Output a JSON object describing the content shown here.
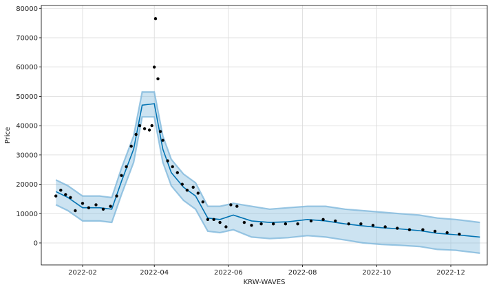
{
  "chart_data": {
    "type": "line",
    "title": "",
    "xlabel": "KRW-WAVES",
    "ylabel": "Price",
    "xlim": [
      "2021-12-29",
      "2022-12-31"
    ],
    "ylim": [
      -7500,
      81000
    ],
    "grid": true,
    "xticks": [
      {
        "label": "2022-02",
        "date": "2022-02-01"
      },
      {
        "label": "2022-04",
        "date": "2022-04-01"
      },
      {
        "label": "2022-06",
        "date": "2022-06-01"
      },
      {
        "label": "2022-08",
        "date": "2022-08-01"
      },
      {
        "label": "2022-10",
        "date": "2022-10-01"
      },
      {
        "label": "2022-12",
        "date": "2022-12-01"
      }
    ],
    "yticks": [
      0,
      10000,
      20000,
      30000,
      40000,
      50000,
      60000,
      70000,
      80000
    ],
    "colors": {
      "forecast": "#0072B2",
      "interval": "#7fb8dc",
      "observed": "#000000"
    },
    "series": [
      {
        "kind": "forecast",
        "x": [
          "2022-01-10",
          "2022-01-20",
          "2022-02-01",
          "2022-02-15",
          "2022-02-25",
          "2022-03-05",
          "2022-03-15",
          "2022-03-22",
          "2022-04-01",
          "2022-04-08",
          "2022-04-15",
          "2022-04-25",
          "2022-05-05",
          "2022-05-15",
          "2022-05-25",
          "2022-06-05",
          "2022-06-20",
          "2022-07-05",
          "2022-07-20",
          "2022-08-05",
          "2022-08-20",
          "2022-09-05",
          "2022-09-20",
          "2022-10-05",
          "2022-10-20",
          "2022-11-05",
          "2022-11-20",
          "2022-12-05",
          "2022-12-15",
          "2022-12-25"
        ],
        "yhat": [
          17500,
          15500,
          12000,
          12000,
          11500,
          21000,
          32000,
          47000,
          47500,
          32000,
          24000,
          19000,
          16000,
          8500,
          8000,
          9500,
          7500,
          7000,
          7200,
          8000,
          7500,
          6500,
          5800,
          5200,
          4800,
          4200,
          3300,
          2800,
          2400,
          2000
        ],
        "yhat_lower": [
          13000,
          11000,
          7500,
          7500,
          7000,
          16500,
          27500,
          43000,
          43000,
          27500,
          19500,
          14500,
          11500,
          4000,
          3500,
          4500,
          2000,
          1500,
          1800,
          2500,
          2000,
          1000,
          0,
          -500,
          -800,
          -1200,
          -2200,
          -2500,
          -3000,
          -3500
        ],
        "yhat_upper": [
          21500,
          19500,
          16000,
          16000,
          15500,
          25500,
          36500,
          51500,
          51500,
          36500,
          28500,
          23500,
          20500,
          12500,
          12500,
          13500,
          12500,
          11500,
          12000,
          12500,
          12500,
          11500,
          11000,
          10500,
          10000,
          9500,
          8500,
          8000,
          7500,
          7000
        ]
      },
      {
        "kind": "observed",
        "x": [
          "2022-01-10",
          "2022-01-14",
          "2022-01-18",
          "2022-01-22",
          "2022-01-26",
          "2022-02-01",
          "2022-02-06",
          "2022-02-12",
          "2022-02-18",
          "2022-02-24",
          "2022-03-01",
          "2022-03-05",
          "2022-03-09",
          "2022-03-13",
          "2022-03-17",
          "2022-03-20",
          "2022-03-24",
          "2022-03-28",
          "2022-03-30",
          "2022-04-01",
          "2022-04-02",
          "2022-04-04",
          "2022-04-06",
          "2022-04-08",
          "2022-04-12",
          "2022-04-16",
          "2022-04-20",
          "2022-04-24",
          "2022-04-28",
          "2022-05-03",
          "2022-05-07",
          "2022-05-11",
          "2022-05-15",
          "2022-05-20",
          "2022-05-25",
          "2022-05-30",
          "2022-06-03",
          "2022-06-08",
          "2022-06-14",
          "2022-06-20",
          "2022-06-28",
          "2022-07-08",
          "2022-07-18",
          "2022-07-28",
          "2022-08-08",
          "2022-08-18",
          "2022-08-28",
          "2022-09-08",
          "2022-09-18",
          "2022-09-28",
          "2022-10-08",
          "2022-10-18",
          "2022-10-28",
          "2022-11-08",
          "2022-11-18",
          "2022-11-28",
          "2022-12-08"
        ],
        "y": [
          16000,
          18000,
          16500,
          15500,
          11000,
          13500,
          12000,
          13000,
          11500,
          12500,
          16000,
          23000,
          26000,
          33000,
          37000,
          40000,
          39000,
          38500,
          40000,
          60000,
          76500,
          56000,
          38000,
          35000,
          28000,
          26000,
          24000,
          20000,
          18000,
          19000,
          17000,
          14000,
          8000,
          8000,
          7000,
          5500,
          13000,
          12500,
          7000,
          6000,
          6500,
          6500,
          6500,
          6500,
          7500,
          8000,
          7500,
          6500,
          6500,
          6000,
          5500,
          5000,
          4500,
          4500,
          4000,
          3500,
          3000
        ]
      }
    ]
  }
}
